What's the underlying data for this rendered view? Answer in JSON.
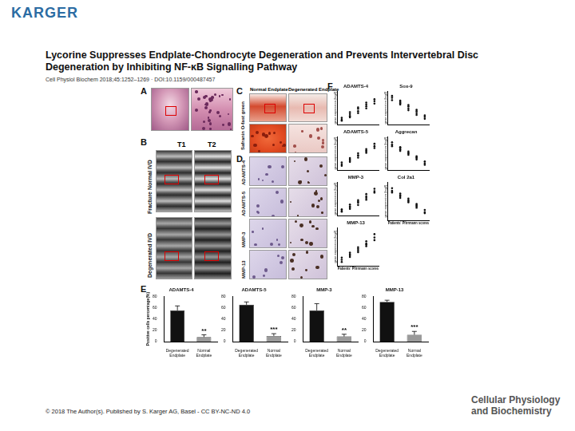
{
  "header": {
    "publisher": "KARGER",
    "title": "Lycorine Suppresses Endplate-Chondrocyte Degeneration and Prevents Intervertebral Disc Degeneration by Inhibiting NF-κB Signalling Pathway",
    "citation": "Cell Physiol Biochem 2018;45:1252–1269 · DOI:10.1159/000487457"
  },
  "footer": {
    "license": "© 2018 The Author(s). Published by S. Karger AG, Basel - CC BY-NC-ND 4.0",
    "journal": [
      "Cellular Physiology",
      "and Biochemistry"
    ]
  },
  "panels": {
    "letters": [
      "A",
      "B",
      "C",
      "D",
      "E",
      "F"
    ],
    "B": {
      "columns": [
        "T1",
        "T2"
      ],
      "rows": [
        "Fracture Normal IVD",
        "Degenerated IVD"
      ]
    },
    "C": {
      "columns": [
        "Normal Endplate",
        "Degenerated Endplate"
      ],
      "row": "Safranin O-fast green"
    },
    "D": {
      "rows": [
        "ADAMTS-4",
        "ADAMTS-5",
        "MMP-3",
        "MMP-13"
      ]
    }
  },
  "chart_data": [
    {
      "panel": "E",
      "type": "bar",
      "title": "ADAMTS-4",
      "ylabel": "Positive cells percentage(%)",
      "categories": [
        "Degenerated Endplate",
        "Normal Endplate"
      ],
      "values": [
        55,
        8
      ],
      "errors": [
        8,
        4
      ],
      "colors": [
        "#111111",
        "#9a9a9a"
      ],
      "ylim": [
        0,
        80
      ],
      "yticks": [
        0,
        20,
        40,
        60,
        80
      ],
      "grid": false,
      "annotations": [
        {
          "category": "Normal Endplate",
          "text": "**"
        }
      ]
    },
    {
      "panel": "E",
      "type": "bar",
      "title": "ADAMTS-5",
      "categories": [
        "Degenerated Endplate",
        "Normal Endplate"
      ],
      "values": [
        65,
        10
      ],
      "errors": [
        5,
        4
      ],
      "colors": [
        "#111111",
        "#9a9a9a"
      ],
      "ylim": [
        0,
        80
      ],
      "yticks": [
        0,
        20,
        40,
        60,
        80
      ],
      "grid": false,
      "annotations": [
        {
          "category": "Normal Endplate",
          "text": "***"
        }
      ]
    },
    {
      "panel": "E",
      "type": "bar",
      "title": "MMP-3",
      "categories": [
        "Degenerated Endplate",
        "Normal Endplate"
      ],
      "values": [
        55,
        9
      ],
      "errors": [
        12,
        4
      ],
      "colors": [
        "#111111",
        "#9a9a9a"
      ],
      "ylim": [
        0,
        80
      ],
      "yticks": [
        0,
        20,
        40,
        60,
        80
      ],
      "grid": false,
      "annotations": [
        {
          "category": "Normal Endplate",
          "text": "**"
        }
      ]
    },
    {
      "panel": "E",
      "type": "bar",
      "title": "MMP-13",
      "categories": [
        "Degenerated Endplate",
        "Normal Endplate"
      ],
      "values": [
        70,
        12
      ],
      "errors": [
        3,
        6
      ],
      "colors": [
        "#111111",
        "#9a9a9a"
      ],
      "ylim": [
        0,
        80
      ],
      "yticks": [
        0,
        20,
        40,
        60,
        80
      ],
      "grid": false,
      "annotations": [
        {
          "category": "Normal Endplate",
          "text": "***"
        }
      ]
    },
    {
      "panel": "F",
      "type": "scatter",
      "title": "ADAMTS-4",
      "ylabel": "gene expression (log2)",
      "marker": "circle",
      "color": "#111111",
      "x": [
        1,
        1,
        1,
        2,
        2,
        2,
        2,
        3,
        3,
        3,
        3,
        4,
        4,
        4,
        4,
        5,
        5,
        5
      ],
      "values": [
        1.0,
        1.4,
        0.8,
        1.8,
        2.2,
        1.5,
        2.6,
        2.8,
        3.3,
        2.4,
        3.6,
        3.8,
        4.2,
        3.4,
        4.6,
        4.9,
        5.3,
        4.4
      ],
      "xlim": [
        0.5,
        5.5
      ],
      "ylim": [
        0,
        7
      ],
      "tick_labels": false,
      "grid": false
    },
    {
      "panel": "F",
      "type": "scatter",
      "title": "ADAMTS-5",
      "ylabel": "gene expression (log2)",
      "marker": "circle",
      "color": "#111111",
      "x": [
        1,
        1,
        1,
        2,
        2,
        2,
        2,
        3,
        3,
        3,
        3,
        4,
        4,
        4,
        4,
        5,
        5,
        5
      ],
      "values": [
        1.2,
        0.9,
        1.6,
        2.0,
        1.7,
        2.5,
        2.2,
        3.0,
        2.6,
        3.5,
        3.1,
        3.9,
        4.4,
        3.6,
        4.1,
        5.0,
        4.6,
        5.5
      ],
      "xlim": [
        0.5,
        5.5
      ],
      "ylim": [
        0,
        7
      ],
      "tick_labels": false,
      "grid": false
    },
    {
      "panel": "F",
      "type": "scatter",
      "title": "MMP-3",
      "ylabel": "gene expression (log2)",
      "marker": "circle",
      "color": "#111111",
      "x": [
        1,
        1,
        1,
        2,
        2,
        2,
        2,
        3,
        3,
        3,
        3,
        4,
        4,
        4,
        4,
        5,
        5,
        5
      ],
      "values": [
        0.8,
        1.3,
        1.0,
        1.9,
        1.4,
        2.3,
        1.7,
        2.7,
        3.2,
        2.2,
        2.9,
        3.7,
        4.0,
        3.3,
        4.5,
        4.8,
        5.6,
        5.1
      ],
      "xlim": [
        0.5,
        5.5
      ],
      "ylim": [
        0,
        7
      ],
      "tick_labels": false,
      "grid": false
    },
    {
      "panel": "F",
      "type": "scatter",
      "title": "MMP-13",
      "ylabel": "gene expression (log2)",
      "xlabel": "Patients' Pfirrmann scores",
      "marker": "circle",
      "color": "#111111",
      "x": [
        1,
        1,
        1,
        2,
        2,
        2,
        2,
        3,
        3,
        3,
        3,
        4,
        4,
        4,
        4,
        5,
        5,
        5
      ],
      "values": [
        1.1,
        1.5,
        0.7,
        2.1,
        1.6,
        2.4,
        1.9,
        3.1,
        2.5,
        3.4,
        2.8,
        4.1,
        3.6,
        4.5,
        3.9,
        5.2,
        4.7,
        5.8
      ],
      "xlim": [
        0.5,
        5.5
      ],
      "ylim": [
        0,
        7
      ],
      "tick_labels": false,
      "grid": false
    },
    {
      "panel": "F",
      "type": "scatter",
      "title": "Sox-9",
      "ylabel": "gene expression (log2)",
      "marker": "circle",
      "color": "#111111",
      "x": [
        1,
        1,
        1,
        2,
        2,
        2,
        2,
        3,
        3,
        3,
        3,
        4,
        4,
        4,
        4,
        5,
        5,
        5
      ],
      "values": [
        5.6,
        5.1,
        6.0,
        4.7,
        5.0,
        4.2,
        4.5,
        3.8,
        3.4,
        4.1,
        3.0,
        2.8,
        2.4,
        3.1,
        2.0,
        1.6,
        1.2,
        1.9
      ],
      "xlim": [
        0.5,
        5.5
      ],
      "ylim": [
        0,
        7
      ],
      "tick_labels": false,
      "grid": false
    },
    {
      "panel": "F",
      "type": "scatter",
      "title": "Aggrecan",
      "ylabel": "gene expression (log2)",
      "marker": "circle",
      "color": "#111111",
      "x": [
        1,
        1,
        1,
        2,
        2,
        2,
        2,
        3,
        3,
        3,
        3,
        4,
        4,
        4,
        4,
        5,
        5,
        5
      ],
      "values": [
        5.8,
        5.3,
        5.0,
        4.8,
        4.3,
        4.6,
        4.0,
        3.6,
        3.9,
        3.2,
        3.5,
        2.9,
        2.5,
        2.2,
        2.7,
        1.4,
        1.8,
        1.1
      ],
      "xlim": [
        0.5,
        5.5
      ],
      "ylim": [
        0,
        7
      ],
      "tick_labels": false,
      "grid": false
    },
    {
      "panel": "F",
      "type": "scatter",
      "title": "Col 2a1",
      "ylabel": "gene expression (log2)",
      "xlabel": "Patients' Pfirrmann scores",
      "marker": "circle",
      "color": "#111111",
      "x": [
        1,
        1,
        1,
        2,
        2,
        2,
        2,
        3,
        3,
        3,
        3,
        4,
        4,
        4,
        4,
        5,
        5,
        5
      ],
      "values": [
        5.4,
        5.9,
        5.1,
        4.4,
        4.9,
        4.1,
        4.6,
        3.7,
        3.3,
        4.0,
        3.5,
        2.6,
        3.0,
        2.3,
        2.8,
        1.5,
        1.9,
        1.3
      ],
      "xlim": [
        0.5,
        5.5
      ],
      "ylim": [
        0,
        7
      ],
      "tick_labels": false,
      "grid": false
    }
  ]
}
